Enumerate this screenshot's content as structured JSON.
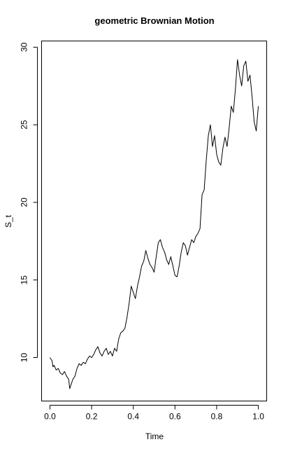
{
  "chart_data": {
    "type": "line",
    "title": "geometric Brownian Motion",
    "xlabel": "Time",
    "ylabel": "S_t",
    "xlim": [
      -0.04,
      1.04
    ],
    "ylim": [
      7.2,
      30.4
    ],
    "x_ticks": [
      0.0,
      0.2,
      0.4,
      0.6,
      0.8,
      1.0
    ],
    "x_tick_labels": [
      "0.0",
      "0.2",
      "0.4",
      "0.6",
      "0.8",
      "1.0"
    ],
    "y_ticks": [
      10,
      15,
      20,
      25,
      30
    ],
    "y_tick_labels": [
      "10",
      "15",
      "20",
      "25",
      "30"
    ],
    "grid": false,
    "line_color": "#000000",
    "series": [
      {
        "x": [
          0.0,
          0.01,
          0.015,
          0.02,
          0.03,
          0.04,
          0.05,
          0.06,
          0.07,
          0.08,
          0.09,
          0.095,
          0.1,
          0.11,
          0.12,
          0.13,
          0.14,
          0.15,
          0.16,
          0.17,
          0.18,
          0.19,
          0.2,
          0.21,
          0.22,
          0.23,
          0.24,
          0.25,
          0.26,
          0.27,
          0.28,
          0.29,
          0.3,
          0.31,
          0.32,
          0.33,
          0.34,
          0.35,
          0.36,
          0.37,
          0.38,
          0.39,
          0.4,
          0.41,
          0.42,
          0.43,
          0.44,
          0.45,
          0.46,
          0.47,
          0.48,
          0.49,
          0.5,
          0.51,
          0.52,
          0.53,
          0.54,
          0.55,
          0.56,
          0.57,
          0.58,
          0.59,
          0.6,
          0.61,
          0.62,
          0.63,
          0.64,
          0.65,
          0.66,
          0.67,
          0.68,
          0.69,
          0.7,
          0.71,
          0.72,
          0.73,
          0.74,
          0.75,
          0.76,
          0.77,
          0.78,
          0.79,
          0.8,
          0.81,
          0.82,
          0.83,
          0.84,
          0.85,
          0.86,
          0.87,
          0.88,
          0.89,
          0.9,
          0.91,
          0.92,
          0.93,
          0.94,
          0.95,
          0.96,
          0.97,
          0.98,
          0.99,
          1.0
        ],
        "y": [
          10.0,
          9.8,
          9.4,
          9.5,
          9.2,
          9.3,
          9.0,
          8.9,
          9.1,
          8.8,
          8.6,
          8.0,
          8.2,
          8.6,
          8.8,
          9.3,
          9.6,
          9.5,
          9.7,
          9.6,
          9.9,
          10.1,
          10.0,
          10.2,
          10.5,
          10.7,
          10.3,
          10.1,
          10.4,
          10.6,
          10.2,
          10.4,
          10.1,
          10.6,
          10.4,
          11.2,
          11.6,
          11.7,
          11.9,
          12.6,
          13.5,
          14.6,
          14.2,
          13.8,
          14.6,
          15.2,
          15.9,
          16.2,
          16.9,
          16.4,
          16.0,
          15.8,
          15.5,
          16.5,
          17.4,
          17.6,
          17.1,
          16.8,
          16.3,
          16.0,
          16.5,
          15.9,
          15.3,
          15.2,
          15.9,
          16.8,
          17.4,
          17.2,
          16.6,
          17.1,
          17.6,
          17.4,
          17.8,
          18.0,
          18.3,
          20.5,
          20.8,
          22.7,
          24.3,
          25.0,
          23.6,
          24.3,
          23.1,
          22.6,
          22.4,
          23.5,
          24.2,
          23.6,
          24.8,
          26.2,
          25.8,
          27.3,
          29.2,
          28.2,
          27.5,
          28.8,
          29.1,
          27.8,
          28.2,
          26.8,
          25.2,
          24.6,
          26.2
        ]
      }
    ]
  }
}
